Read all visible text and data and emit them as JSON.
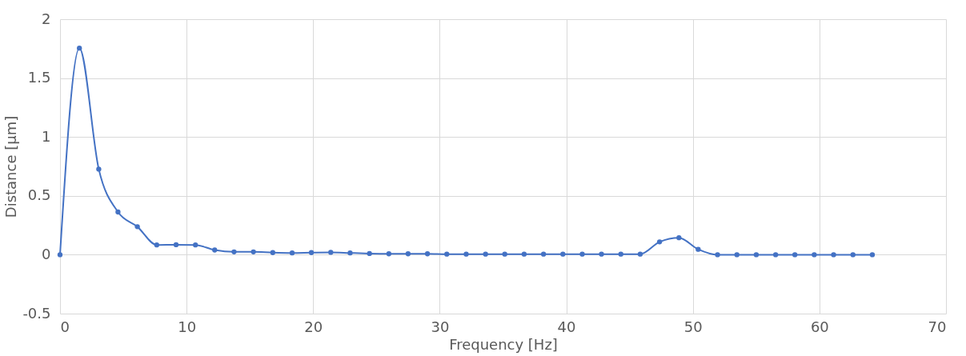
{
  "chart_data": {
    "type": "line",
    "xlabel": "Frequency [Hz]",
    "ylabel": "Distance [µm]",
    "x": [
      0,
      1.53,
      3.06,
      4.58,
      6.11,
      7.64,
      9.17,
      10.7,
      12.22,
      13.75,
      15.28,
      16.81,
      18.34,
      19.86,
      21.39,
      22.92,
      24.45,
      25.98,
      27.5,
      29.03,
      30.56,
      32.09,
      33.62,
      35.14,
      36.67,
      38.2,
      39.73,
      41.26,
      42.78,
      44.31,
      45.84,
      47.37,
      48.9,
      50.42,
      51.95,
      53.48,
      55.01,
      56.54,
      58.06,
      59.59,
      61.12,
      62.65,
      64.18
    ],
    "series": [
      {
        "color": "#4472c4",
        "values": [
          0,
          1.754,
          0.727,
          0.363,
          0.238,
          0.083,
          0.085,
          0.083,
          0.04,
          0.024,
          0.024,
          0.018,
          0.015,
          0.018,
          0.02,
          0.015,
          0.01,
          0.008,
          0.008,
          0.008,
          0.005,
          0.005,
          0.005,
          0.005,
          0.005,
          0.005,
          0.005,
          0.005,
          0.005,
          0.005,
          0.005,
          0.109,
          0.144,
          0.046,
          0,
          0,
          0,
          0,
          0,
          0,
          0,
          0,
          0
        ]
      }
    ],
    "xlim": [
      0,
      70
    ],
    "xticks": [
      0,
      10,
      20,
      30,
      40,
      50,
      60,
      70
    ],
    "ylim": [
      -0.5,
      2
    ],
    "yticks": [
      -0.5,
      0,
      0.5,
      1,
      1.5,
      2
    ],
    "grid": true,
    "marker": "circle",
    "line_style": "solid"
  }
}
